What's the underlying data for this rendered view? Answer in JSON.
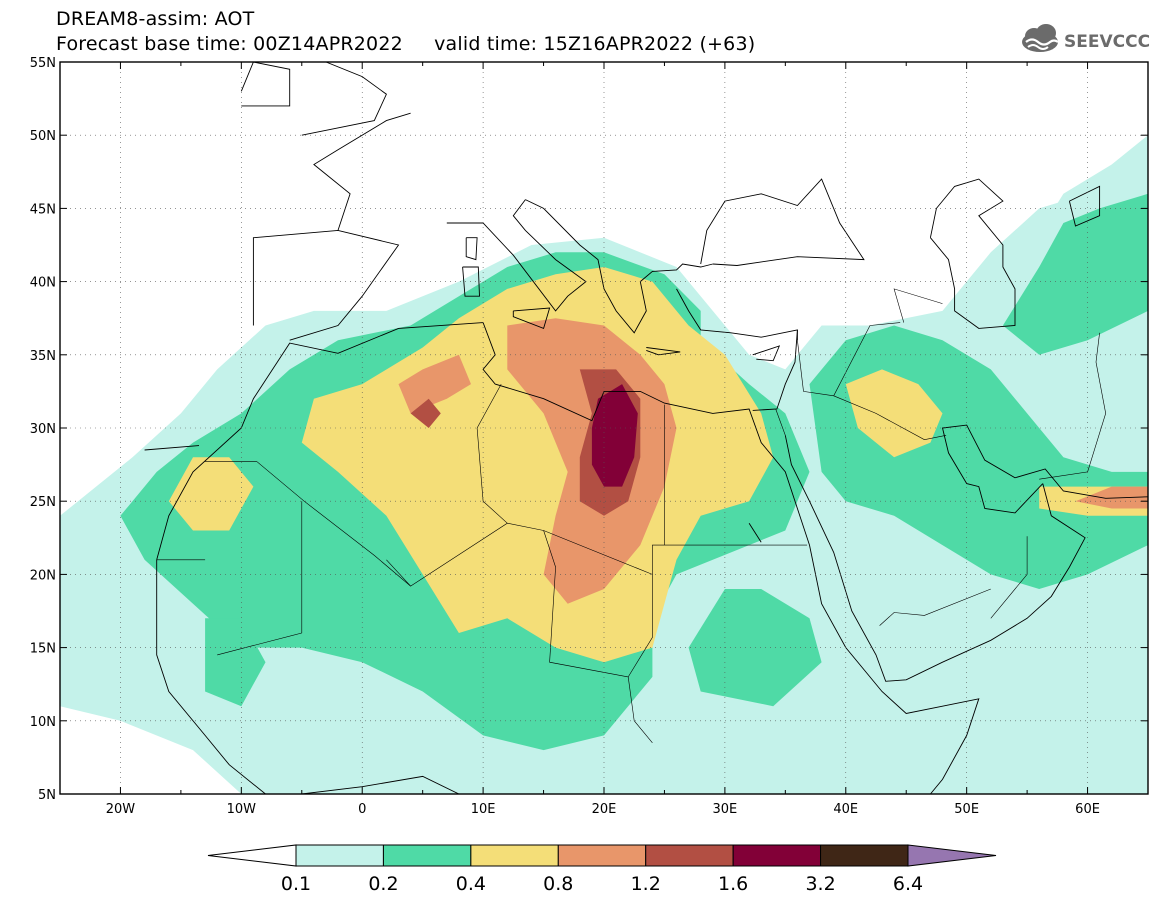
{
  "header": {
    "line1": "DREAM8-assim: AOT",
    "line2": "Forecast base time: 00Z14APR2022     valid time: 15Z16APR2022 (+63)",
    "logo_text": "SEEVCCC"
  },
  "map": {
    "lon_range": [
      -25,
      65
    ],
    "lat_range": [
      5,
      55
    ],
    "lon_ticks": [
      {
        "value": -20,
        "label": "20W"
      },
      {
        "value": -10,
        "label": "10W"
      },
      {
        "value": 0,
        "label": "0"
      },
      {
        "value": 10,
        "label": "10E"
      },
      {
        "value": 20,
        "label": "20E"
      },
      {
        "value": 30,
        "label": "30E"
      },
      {
        "value": 40,
        "label": "40E"
      },
      {
        "value": 50,
        "label": "50E"
      },
      {
        "value": 60,
        "label": "60E"
      }
    ],
    "lat_ticks": [
      {
        "value": 5,
        "label": "5N"
      },
      {
        "value": 10,
        "label": "10N"
      },
      {
        "value": 15,
        "label": "15N"
      },
      {
        "value": 20,
        "label": "20N"
      },
      {
        "value": 25,
        "label": "25N"
      },
      {
        "value": 30,
        "label": "30N"
      },
      {
        "value": 35,
        "label": "35N"
      },
      {
        "value": 40,
        "label": "40N"
      },
      {
        "value": 45,
        "label": "45N"
      },
      {
        "value": 50,
        "label": "50N"
      },
      {
        "value": 55,
        "label": "55N"
      }
    ],
    "grid": "dotted",
    "colors": {
      "0.1": "#c4f2ea",
      "0.2": "#4fdaa6",
      "0.4": "#f4de78",
      "0.8": "#e8966a",
      "1.2": "#b24f43",
      "1.6": "#820037",
      "3.2": "#3f2616",
      "6.4": "#9676b0"
    }
  },
  "colorbar": {
    "labels": [
      "0.1",
      "0.2",
      "0.4",
      "0.8",
      "1.2",
      "1.6",
      "3.2",
      "6.4"
    ],
    "colors": [
      "#c4f2ea",
      "#4fdaa6",
      "#f4de78",
      "#e8966a",
      "#b24f43",
      "#820037",
      "#3f2616",
      "#9676b0"
    ],
    "under_color": "#ffffff",
    "over_color": "#9676b0"
  }
}
